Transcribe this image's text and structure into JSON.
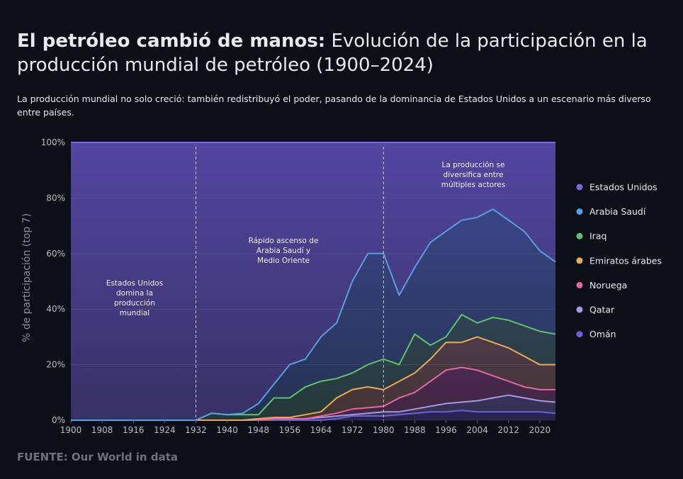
{
  "chart_data": {
    "type": "stacked-area",
    "title_bold": "El petróleo cambió de manos:",
    "title": "Evolución de la participación en la producción mundial de petróleo (1900–2024)",
    "subtitle": "La producción mundial no solo creció: también redistribuyó el poder, pasando de la dominancia de Estados Unidos a un escenario más diverso entre países.",
    "y_label": "% de participación (top 7)",
    "source": "FUENTE: Our World in data",
    "x": [
      1900,
      1904,
      1908,
      1912,
      1916,
      1920,
      1924,
      1928,
      1932,
      1936,
      1940,
      1944,
      1948,
      1952,
      1956,
      1960,
      1964,
      1968,
      1972,
      1976,
      1980,
      1984,
      1988,
      1992,
      1996,
      2000,
      2004,
      2008,
      2012,
      2016,
      2020,
      2024
    ],
    "series": [
      {
        "name": "Estados Unidos",
        "color": "#7a6ad8",
        "values": [
          100,
          100,
          100,
          100,
          100,
          100,
          100,
          100,
          100,
          97.5,
          98,
          97.5,
          94,
          87,
          80,
          78,
          70,
          65,
          50,
          40,
          40,
          55,
          45,
          36,
          32,
          28,
          27,
          24,
          28,
          32,
          39,
          43
        ]
      },
      {
        "name": "Arabia Saudí",
        "color": "#5b9ee0",
        "values": [
          0,
          0,
          0,
          0,
          0,
          0,
          0,
          0,
          0,
          0,
          0,
          0.5,
          4,
          5,
          12,
          10,
          16,
          20,
          33,
          40,
          38,
          25,
          24,
          37,
          38,
          34,
          38,
          39,
          36,
          34,
          29,
          26
        ]
      },
      {
        "name": "Iraq",
        "color": "#5fc172",
        "values": [
          0,
          0,
          0,
          0,
          0,
          0,
          0,
          0,
          0,
          2.5,
          2,
          2,
          1.5,
          7,
          7,
          10,
          11,
          7,
          6,
          8,
          11,
          6,
          14,
          5,
          2,
          10,
          5,
          9,
          10,
          11,
          12,
          11
        ]
      },
      {
        "name": "Emiratos árabes",
        "color": "#eca85c",
        "values": [
          0,
          0,
          0,
          0,
          0,
          0,
          0,
          0,
          0,
          0,
          0,
          0,
          0.5,
          0.5,
          0.5,
          1.5,
          1.5,
          5.5,
          7,
          7.5,
          6,
          6,
          7,
          8,
          10,
          9,
          12,
          12,
          12,
          11,
          9,
          9
        ]
      },
      {
        "name": "Noruega",
        "color": "#e4689c",
        "values": [
          0,
          0,
          0,
          0,
          0,
          0,
          0,
          0,
          0,
          0,
          0,
          0,
          0,
          0,
          0,
          0,
          0.5,
          1,
          2,
          2,
          2,
          5,
          6,
          9,
          12,
          12.5,
          11,
          8,
          5,
          4,
          4,
          4.5
        ]
      },
      {
        "name": "Qatar",
        "color": "#a898e4",
        "values": [
          0,
          0,
          0,
          0,
          0,
          0,
          0,
          0,
          0,
          0,
          0,
          0,
          0,
          0.5,
          0.5,
          0.5,
          1,
          1,
          0.5,
          1,
          1.5,
          1,
          1.5,
          2,
          3,
          3,
          4,
          5,
          6,
          5,
          4,
          4
        ]
      },
      {
        "name": "Omán",
        "color": "#6e60d8",
        "values": [
          0,
          0,
          0,
          0,
          0,
          0,
          0,
          0,
          0,
          0,
          0,
          0,
          0,
          0,
          0,
          0,
          0,
          0.5,
          1.5,
          1.5,
          1.5,
          2,
          2.5,
          3,
          3,
          3.5,
          3,
          3,
          3,
          3,
          3,
          2.5
        ]
      }
    ],
    "xlim": [
      1900,
      2024
    ],
    "xticks": [
      1900,
      1908,
      1916,
      1924,
      1932,
      1940,
      1948,
      1956,
      1964,
      1972,
      1980,
      1988,
      1996,
      2004,
      2012,
      2020
    ],
    "ylim": [
      0,
      100
    ],
    "yticks": [
      {
        "value": 0,
        "label": "0%"
      },
      {
        "value": 20,
        "label": "20%"
      },
      {
        "value": 40,
        "label": "40%"
      },
      {
        "value": 60,
        "label": "60%"
      },
      {
        "value": 80,
        "label": "80%"
      },
      {
        "value": 100,
        "label": "100%"
      }
    ],
    "grid": true,
    "legend": "right",
    "vlines": [
      1932,
      1980
    ],
    "annotations": [
      [
        "Estados Unidos",
        "domina la",
        "producción",
        "mundial"
      ],
      [
        "Rápido ascenso de",
        "Arabia Saudí y",
        "Medio Oriente"
      ],
      [
        "La producción se",
        "diversifica entre",
        "múltiples actores"
      ]
    ]
  }
}
